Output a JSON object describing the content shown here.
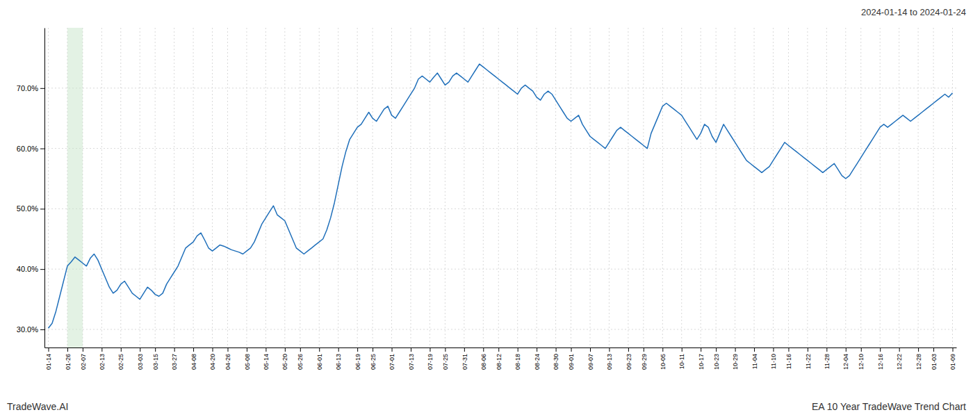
{
  "chart_data": {
    "type": "line",
    "title": "2024-01-14 to 2024-01-24",
    "annotations": [
      "TradeWave.AI",
      "EA 10 Year TradeWave Trend Chart"
    ],
    "color": "#1f6fba",
    "grid": true,
    "ylim": [
      27.0,
      80.0
    ],
    "yticks": [
      {
        "value": 30.0,
        "label": "30.0%"
      },
      {
        "value": 40.0,
        "label": "40.0%"
      },
      {
        "value": 50.0,
        "label": "50.0%"
      },
      {
        "value": 60.0,
        "label": "60.0%"
      },
      {
        "value": 70.0,
        "label": "70.0%"
      }
    ],
    "highlight": {
      "from": "01-26",
      "to": "02-07",
      "color": "#c8e6c9"
    },
    "categories": [
      "01-14",
      null,
      null,
      null,
      null,
      "01-26",
      null,
      null,
      null,
      "02-07",
      null,
      null,
      null,
      null,
      "02-13",
      null,
      null,
      null,
      null,
      "02-25",
      null,
      null,
      null,
      null,
      "03-03",
      null,
      null,
      null,
      "03-15",
      null,
      null,
      null,
      null,
      "03-27",
      null,
      null,
      null,
      null,
      "04-08",
      null,
      null,
      null,
      null,
      "04-20",
      null,
      null,
      null,
      "04-26",
      null,
      null,
      null,
      null,
      "05-08",
      null,
      null,
      null,
      null,
      "05-14",
      null,
      null,
      null,
      null,
      "05-20",
      null,
      null,
      null,
      "05-26",
      null,
      null,
      null,
      null,
      "06-01",
      null,
      null,
      null,
      null,
      "06-13",
      null,
      null,
      null,
      null,
      "06-19",
      null,
      null,
      null,
      "06-25",
      null,
      null,
      null,
      null,
      "07-01",
      null,
      null,
      null,
      null,
      "07-13",
      null,
      null,
      null,
      null,
      "07-19",
      null,
      null,
      null,
      "07-25",
      null,
      null,
      null,
      null,
      "07-31",
      null,
      null,
      null,
      null,
      "08-06",
      null,
      null,
      null,
      "08-12",
      null,
      null,
      null,
      null,
      "08-18",
      null,
      null,
      null,
      null,
      "08-24",
      null,
      null,
      null,
      null,
      "08-30",
      null,
      null,
      null,
      "09-01",
      null,
      null,
      null,
      null,
      "09-07",
      null,
      null,
      null,
      null,
      "09-13",
      null,
      null,
      null,
      null,
      "09-23",
      null,
      null,
      null,
      "09-29",
      null,
      null,
      null,
      null,
      "10-05",
      null,
      null,
      null,
      null,
      "10-11",
      null,
      null,
      null,
      null,
      "10-17",
      null,
      null,
      null,
      "10-23",
      null,
      null,
      null,
      null,
      "10-29",
      null,
      null,
      null,
      null,
      "11-04",
      null,
      null,
      null,
      null,
      "11-10",
      null,
      null,
      null,
      "11-16",
      null,
      null,
      null,
      null,
      "11-22",
      null,
      null,
      null,
      null,
      "11-28",
      null,
      null,
      null,
      null,
      "12-04",
      null,
      null,
      null,
      "12-10",
      null,
      null,
      null,
      null,
      "12-16",
      null,
      null,
      null,
      null,
      "12-22",
      null,
      null,
      null,
      null,
      "12-28",
      null,
      null,
      null,
      "01-03",
      null,
      null,
      null,
      null,
      "01-09"
    ],
    "values": [
      30.2,
      31.0,
      33.0,
      35.5,
      38.0,
      40.5,
      41.2,
      42.0,
      41.5,
      41.0,
      40.5,
      41.8,
      42.5,
      41.5,
      40.0,
      38.5,
      37.0,
      36.0,
      36.5,
      37.5,
      38.0,
      37.0,
      36.0,
      35.5,
      35.0,
      36.0,
      37.0,
      36.5,
      35.8,
      35.5,
      36.0,
      37.5,
      38.5,
      39.5,
      40.5,
      42.0,
      43.5,
      44.0,
      44.5,
      45.5,
      46.0,
      44.8,
      43.5,
      43.0,
      43.5,
      44.0,
      43.8,
      43.5,
      43.2,
      43.0,
      42.8,
      42.5,
      43.0,
      43.5,
      44.5,
      46.0,
      47.5,
      48.5,
      49.5,
      50.5,
      49.0,
      48.5,
      48.0,
      46.5,
      45.0,
      43.5,
      43.0,
      42.5,
      43.0,
      43.5,
      44.0,
      44.5,
      45.0,
      46.5,
      48.5,
      51.0,
      54.0,
      57.0,
      59.5,
      61.5,
      62.5,
      63.5,
      64.0,
      65.0,
      66.0,
      65.0,
      64.5,
      65.5,
      66.5,
      67.0,
      65.5,
      65.0,
      66.0,
      67.0,
      68.0,
      69.0,
      70.0,
      71.5,
      72.0,
      71.5,
      71.0,
      71.8,
      72.5,
      71.5,
      70.5,
      71.0,
      72.0,
      72.5,
      72.0,
      71.5,
      71.0,
      72.0,
      73.0,
      74.0,
      73.5,
      73.0,
      72.5,
      72.0,
      71.5,
      71.0,
      70.5,
      70.0,
      69.5,
      69.0,
      70.0,
      70.5,
      70.0,
      69.5,
      68.5,
      68.0,
      69.0,
      69.5,
      69.0,
      68.0,
      67.0,
      66.0,
      65.0,
      64.5,
      65.0,
      65.5,
      64.0,
      63.0,
      62.0,
      61.5,
      61.0,
      60.5,
      60.0,
      61.0,
      62.0,
      63.0,
      63.5,
      63.0,
      62.5,
      62.0,
      61.5,
      61.0,
      60.5,
      60.0,
      62.5,
      64.0,
      65.5,
      67.0,
      67.5,
      67.0,
      66.5,
      66.0,
      65.5,
      64.5,
      63.5,
      62.5,
      61.5,
      62.5,
      64.0,
      63.5,
      62.0,
      61.0,
      62.5,
      64.0,
      63.0,
      62.0,
      61.0,
      60.0,
      59.0,
      58.0,
      57.5,
      57.0,
      56.5,
      56.0,
      56.5,
      57.0,
      58.0,
      59.0,
      60.0,
      61.0,
      60.5,
      60.0,
      59.5,
      59.0,
      58.5,
      58.0,
      57.5,
      57.0,
      56.5,
      56.0,
      56.5,
      57.0,
      57.5,
      56.5,
      55.5,
      55.0,
      55.5,
      56.5,
      57.5,
      58.5,
      59.5,
      60.5,
      61.5,
      62.5,
      63.5,
      64.0,
      63.5,
      64.0,
      64.5,
      65.0,
      65.5,
      65.0,
      64.5,
      65.0,
      65.5,
      66.0,
      66.5,
      67.0,
      67.5,
      68.0,
      68.5,
      69.0,
      68.5,
      69.2
    ]
  }
}
